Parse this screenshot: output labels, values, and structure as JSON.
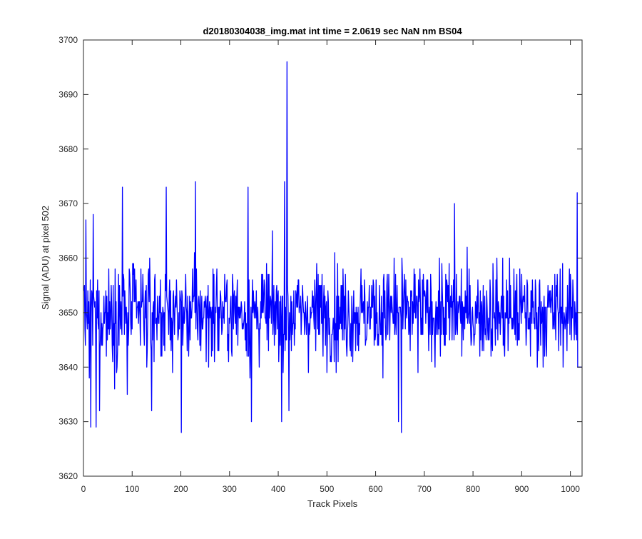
{
  "chart_data": {
    "type": "line",
    "title": "d20180304038_img.mat int time = 2.0619 sec  NaN nm BS04",
    "xlabel": "Track Pixels",
    "ylabel": "Signal (ADU) at pixel 502",
    "xlim": [
      0,
      1024
    ],
    "ylim": [
      3620,
      3700
    ],
    "xticks": [
      0,
      100,
      200,
      300,
      400,
      500,
      600,
      700,
      800,
      900,
      1000
    ],
    "yticks": [
      3620,
      3630,
      3640,
      3650,
      3660,
      3670,
      3680,
      3690,
      3700
    ],
    "grid": false,
    "line_color": "#0000ff",
    "axes_color": "#262626",
    "series": [
      {
        "x_start": 1,
        "x_step": 1,
        "noise_center": 3650,
        "notable_points": [
          {
            "x": 2,
            "y": 3655
          },
          {
            "x": 5,
            "y": 3667
          },
          {
            "x": 12,
            "y": 3638
          },
          {
            "x": 15,
            "y": 3629
          },
          {
            "x": 20,
            "y": 3668
          },
          {
            "x": 26,
            "y": 3629
          },
          {
            "x": 33,
            "y": 3632
          },
          {
            "x": 80,
            "y": 3673
          },
          {
            "x": 90,
            "y": 3635
          },
          {
            "x": 140,
            "y": 3632
          },
          {
            "x": 170,
            "y": 3673
          },
          {
            "x": 201,
            "y": 3628
          },
          {
            "x": 230,
            "y": 3674
          },
          {
            "x": 338,
            "y": 3673
          },
          {
            "x": 345,
            "y": 3630
          },
          {
            "x": 407,
            "y": 3630
          },
          {
            "x": 413,
            "y": 3674
          },
          {
            "x": 418,
            "y": 3696
          },
          {
            "x": 422,
            "y": 3632
          },
          {
            "x": 647,
            "y": 3630
          },
          {
            "x": 653,
            "y": 3628
          },
          {
            "x": 762,
            "y": 3670
          },
          {
            "x": 1014,
            "y": 3672
          },
          {
            "x": 1015,
            "y": 3640
          },
          {
            "x": 1024,
            "y": 3640
          }
        ]
      }
    ]
  }
}
